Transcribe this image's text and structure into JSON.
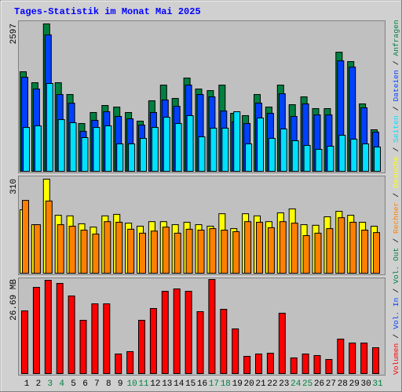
{
  "title": "Tages-Statistik im Monat Mai 2025",
  "legend_separator": "/",
  "chart_data": [
    {
      "type": "bar",
      "ylim": [
        0,
        2597
      ],
      "yticks": [
        2597
      ],
      "series": [
        {
          "name": "Anfragen",
          "color": "#008040",
          "values": [
            1754,
            1561,
            2597,
            1561,
            1353,
            842,
            1036,
            1160,
            1132,
            1036,
            884,
            1243,
            1519,
            1284,
            1643,
            1450,
            1422,
            1519,
            1022,
            981,
            1353,
            1132,
            1519,
            1174,
            1312,
            1105,
            1105,
            2099,
            1933,
            1188,
            732
          ]
        },
        {
          "name": "Dateien",
          "color": "#0040ff",
          "values": [
            1657,
            1450,
            2403,
            1353,
            1201,
            704,
            898,
            1050,
            967,
            925,
            815,
            1036,
            1257,
            1146,
            1519,
            1353,
            1312,
            1063,
            870,
            842,
            1201,
            1022,
            1367,
            967,
            1188,
            994,
            994,
            1947,
            1837,
            1119,
            691
          ]
        },
        {
          "name": "Seiten",
          "color": "#00e0ff",
          "values": [
            773,
            801,
            1547,
            911,
            856,
            594,
            773,
            801,
            483,
            483,
            580,
            773,
            953,
            842,
            981,
            608,
            760,
            760,
            1050,
            483,
            939,
            580,
            746,
            539,
            456,
            387,
            442,
            635,
            566,
            483,
            428
          ]
        }
      ]
    },
    {
      "type": "bar",
      "ylim": [
        0,
        310
      ],
      "yticks": [
        310
      ],
      "series": [
        {
          "name": "Besuche",
          "color": "#ffff00",
          "values": [
            209,
            160,
            310,
            191,
            189,
            163,
            152,
            189,
            194,
            165,
            155,
            170,
            170,
            160,
            168,
            160,
            155,
            196,
            147,
            196,
            189,
            170,
            199,
            212,
            160,
            158,
            186,
            204,
            191,
            168,
            155
          ]
        },
        {
          "name": "Rechner",
          "color": "#ff8000",
          "values": [
            240,
            160,
            238,
            160,
            155,
            142,
            129,
            170,
            168,
            145,
            132,
            139,
            152,
            132,
            145,
            142,
            147,
            142,
            137,
            170,
            168,
            150,
            170,
            165,
            124,
            132,
            147,
            183,
            168,
            142,
            134
          ]
        }
      ]
    },
    {
      "type": "bar",
      "ylim": [
        0,
        26.69
      ],
      "yticks": [
        {
          "value": 26.69,
          "label": "26.69 MB"
        }
      ],
      "categories": [
        "1",
        "2",
        "3",
        "4",
        "5",
        "6",
        "7",
        "8",
        "9",
        "10",
        "11",
        "12",
        "13",
        "14",
        "15",
        "16",
        "17",
        "18",
        "19",
        "20",
        "21",
        "22",
        "23",
        "24",
        "25",
        "26",
        "27",
        "28",
        "29",
        "30",
        "31"
      ],
      "category_colors": [
        "#000000",
        "#000000",
        "#008040",
        "#008040",
        "#000000",
        "#000000",
        "#000000",
        "#000000",
        "#000000",
        "#008040",
        "#008040",
        "#000000",
        "#000000",
        "#000000",
        "#000000",
        "#000000",
        "#008040",
        "#008040",
        "#000000",
        "#000000",
        "#000000",
        "#000000",
        "#000000",
        "#008040",
        "#008040",
        "#000000",
        "#000000",
        "#000000",
        "#000000",
        "#000000",
        "#008040"
      ],
      "series": [
        {
          "name": "Vol. Out",
          "color": "#008040"
        },
        {
          "name": "Vol. In",
          "color": "#0040ff"
        },
        {
          "name": "Volumen",
          "color": "#ff0000",
          "values": [
            17.79,
            24.46,
            26.47,
            25.58,
            22.02,
            15.12,
            19.79,
            19.79,
            5.56,
            6.23,
            15.12,
            18.46,
            23.35,
            24.02,
            23.35,
            17.57,
            26.69,
            18.24,
            12.68,
            4.89,
            5.56,
            5.78,
            17.13,
            4.45,
            5.56,
            5.12,
            4.0,
            9.79,
            8.67,
            8.67,
            7.34
          ]
        }
      ]
    }
  ]
}
